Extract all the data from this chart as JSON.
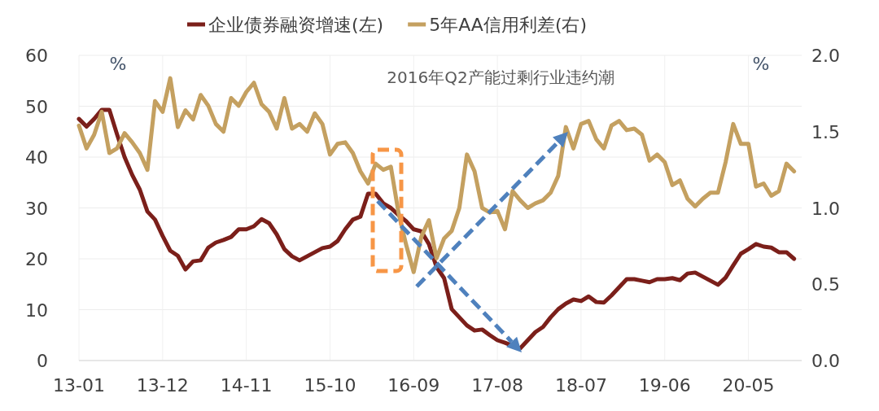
{
  "chart_data": {
    "type": "line",
    "x": [
      "2013-01",
      "2013-02",
      "2013-03",
      "2013-04",
      "2013-05",
      "2013-06",
      "2013-07",
      "2013-08",
      "2013-09",
      "2013-10",
      "2013-11",
      "2013-12",
      "2014-01",
      "2014-02",
      "2014-03",
      "2014-04",
      "2014-05",
      "2014-06",
      "2014-07",
      "2014-08",
      "2014-09",
      "2014-10",
      "2014-11",
      "2014-12",
      "2015-01",
      "2015-02",
      "2015-03",
      "2015-04",
      "2015-05",
      "2015-06",
      "2015-07",
      "2015-08",
      "2015-09",
      "2015-10",
      "2015-11",
      "2015-12",
      "2016-01",
      "2016-02",
      "2016-03",
      "2016-04",
      "2016-05",
      "2016-06",
      "2016-07",
      "2016-08",
      "2016-09",
      "2016-10",
      "2016-11",
      "2016-12",
      "2017-01",
      "2017-02",
      "2017-03",
      "2017-04",
      "2017-05",
      "2017-06",
      "2017-07",
      "2017-08",
      "2017-09",
      "2017-10",
      "2017-11",
      "2017-12",
      "2018-01",
      "2018-02",
      "2018-03",
      "2018-04",
      "2018-05",
      "2018-06",
      "2018-07",
      "2018-08",
      "2018-09",
      "2018-10",
      "2018-11",
      "2018-12",
      "2019-01",
      "2019-02",
      "2019-03",
      "2019-04",
      "2019-05",
      "2019-06",
      "2019-07",
      "2019-08",
      "2019-09",
      "2019-10",
      "2019-11",
      "2019-12",
      "2020-01",
      "2020-02",
      "2020-03",
      "2020-04",
      "2020-05",
      "2020-06",
      "2020-07",
      "2020-08",
      "2020-09",
      "2020-10",
      "2020-11"
    ],
    "series": [
      {
        "name": "企业债券融资增速(左)",
        "color": "#7b1f1a",
        "values": [
          47.5,
          46,
          47.5,
          49.3,
          49.3,
          44.5,
          40,
          36.5,
          33.6,
          29.3,
          27.7,
          24.5,
          21.6,
          20.6,
          17.9,
          19.5,
          19.7,
          22.2,
          23.2,
          23.7,
          24.3,
          25.8,
          25.8,
          26.4,
          27.8,
          27,
          24.8,
          21.9,
          20.5,
          19.7,
          20.5,
          21.3,
          22.1,
          22.4,
          23.5,
          25.8,
          27.7,
          28.3,
          32.8,
          32.8,
          30.9,
          30,
          28.6,
          27.4,
          25.8,
          25.4,
          22.9,
          18.4,
          16.2,
          10.1,
          8.5,
          6.9,
          5.9,
          6.1,
          5,
          4,
          3.5,
          2.9,
          2.4,
          4,
          5.6,
          6.6,
          8.5,
          10.1,
          11.2,
          12,
          11.7,
          12.6,
          11.5,
          11.4,
          12.8,
          14.4,
          16,
          16,
          15.7,
          15.4,
          16,
          16,
          16.2,
          15.8,
          17.1,
          17.3,
          16.5,
          15.7,
          14.9,
          16.3,
          18.7,
          21,
          21.9,
          22.9,
          22.4,
          22.2,
          21.3,
          21.3,
          20
        ]
      },
      {
        "name": "5年AA信用利差(右)",
        "color": "#c4a060",
        "axis": "y2",
        "values": [
          1.54,
          1.39,
          1.48,
          1.63,
          1.36,
          1.39,
          1.49,
          1.43,
          1.36,
          1.25,
          1.7,
          1.63,
          1.85,
          1.53,
          1.64,
          1.58,
          1.74,
          1.67,
          1.55,
          1.5,
          1.72,
          1.67,
          1.76,
          1.82,
          1.68,
          1.63,
          1.52,
          1.72,
          1.52,
          1.55,
          1.5,
          1.62,
          1.55,
          1.35,
          1.42,
          1.43,
          1.36,
          1.24,
          1.16,
          1.29,
          1.25,
          1.27,
          0.97,
          0.76,
          0.58,
          0.81,
          0.92,
          0.67,
          0.8,
          0.85,
          1.0,
          1.35,
          1.24,
          1.0,
          0.97,
          0.98,
          0.86,
          1.11,
          1.05,
          1.0,
          1.03,
          1.05,
          1.1,
          1.21,
          1.53,
          1.39,
          1.55,
          1.57,
          1.45,
          1.39,
          1.54,
          1.57,
          1.51,
          1.52,
          1.48,
          1.31,
          1.35,
          1.3,
          1.15,
          1.18,
          1.06,
          1.01,
          1.06,
          1.1,
          1.1,
          1.3,
          1.55,
          1.42,
          1.42,
          1.14,
          1.16,
          1.08,
          1.11,
          1.29,
          1.24
        ]
      }
    ],
    "xlim": [
      "2013-01",
      "2020-12"
    ],
    "xticks": [
      {
        "value": "2013-01",
        "label": "13-01"
      },
      {
        "value": "2013-12",
        "label": "13-12"
      },
      {
        "value": "2014-11",
        "label": "14-11"
      },
      {
        "value": "2015-10",
        "label": "15-10"
      },
      {
        "value": "2016-09",
        "label": "16-09"
      },
      {
        "value": "2017-08",
        "label": "17-08"
      },
      {
        "value": "2018-07",
        "label": "18-07"
      },
      {
        "value": "2019-06",
        "label": "19-06"
      },
      {
        "value": "2020-05",
        "label": "20-05"
      }
    ],
    "ylim": [
      0,
      60
    ],
    "yticks": [
      0,
      10,
      20,
      30,
      40,
      50,
      60
    ],
    "y2lim": [
      0,
      2
    ],
    "y2ticks": [
      {
        "value": 0,
        "label": "0.0"
      },
      0.5,
      {
        "value": 1,
        "label": "1.0"
      },
      1.5,
      {
        "value": 2,
        "label": "2.0"
      }
    ],
    "annotations": [
      "%",
      "2016年Q2产能过剩行业违约潮",
      "%"
    ],
    "grid": true,
    "legend": "top",
    "marker": "none",
    "line_style": "solid"
  }
}
